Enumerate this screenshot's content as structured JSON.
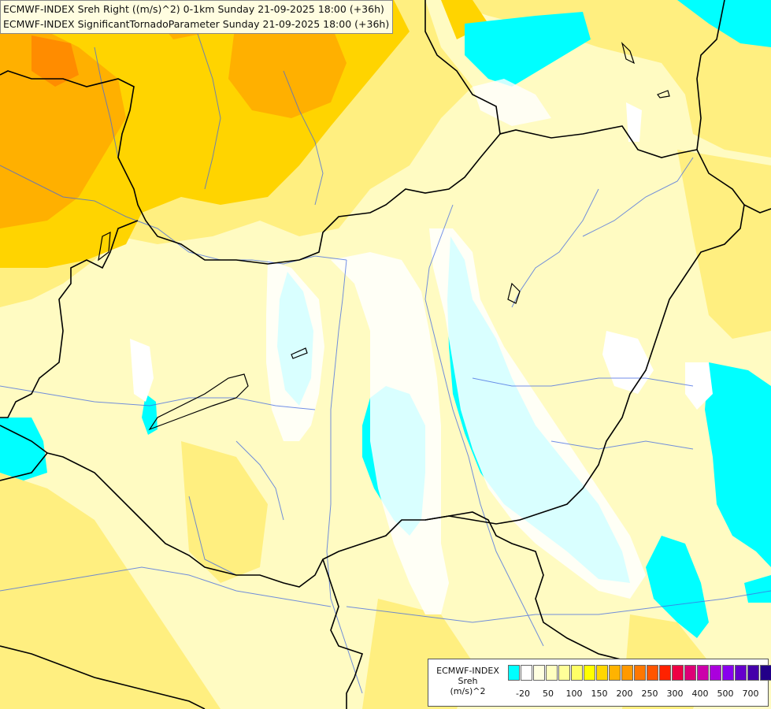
{
  "header": {
    "line1": "ECMWF-INDEX Sreh Right ((m/s)^2) 0-1km Sunday 21-09-2025 18:00 (+36h)",
    "line2": "ECMWF-INDEX SignificantTornadoParameter Sunday 21-09-2025 18:00 (+36h)"
  },
  "legend": {
    "title_line1": "ECMWF-INDEX",
    "title_line2": "Sreh",
    "title_line3": "(m/s)^2",
    "colors": [
      "#00ffff",
      "#ffffff",
      "#ffffe0",
      "#ffffc0",
      "#ffff99",
      "#ffff66",
      "#ffff00",
      "#ffd700",
      "#ffb300",
      "#ff9900",
      "#ff7700",
      "#ff5500",
      "#ff2200",
      "#ee0044",
      "#dd0077",
      "#cc00aa",
      "#aa00dd",
      "#8800ee",
      "#6600cc",
      "#4400aa",
      "#220088",
      "#000066"
    ],
    "ticks": [
      "-20",
      "50",
      "100",
      "150",
      "200",
      "250",
      "300",
      "400",
      "500",
      "700"
    ]
  },
  "colors": {
    "cyan": "#00ffff",
    "pale_yellow": "#fffbc2",
    "yellow": "#ffef66",
    "light_orange": "#ffd200",
    "orange": "#ffb000",
    "dark_orange": "#ff8c00",
    "border": "#000000",
    "river": "#4169e1"
  }
}
